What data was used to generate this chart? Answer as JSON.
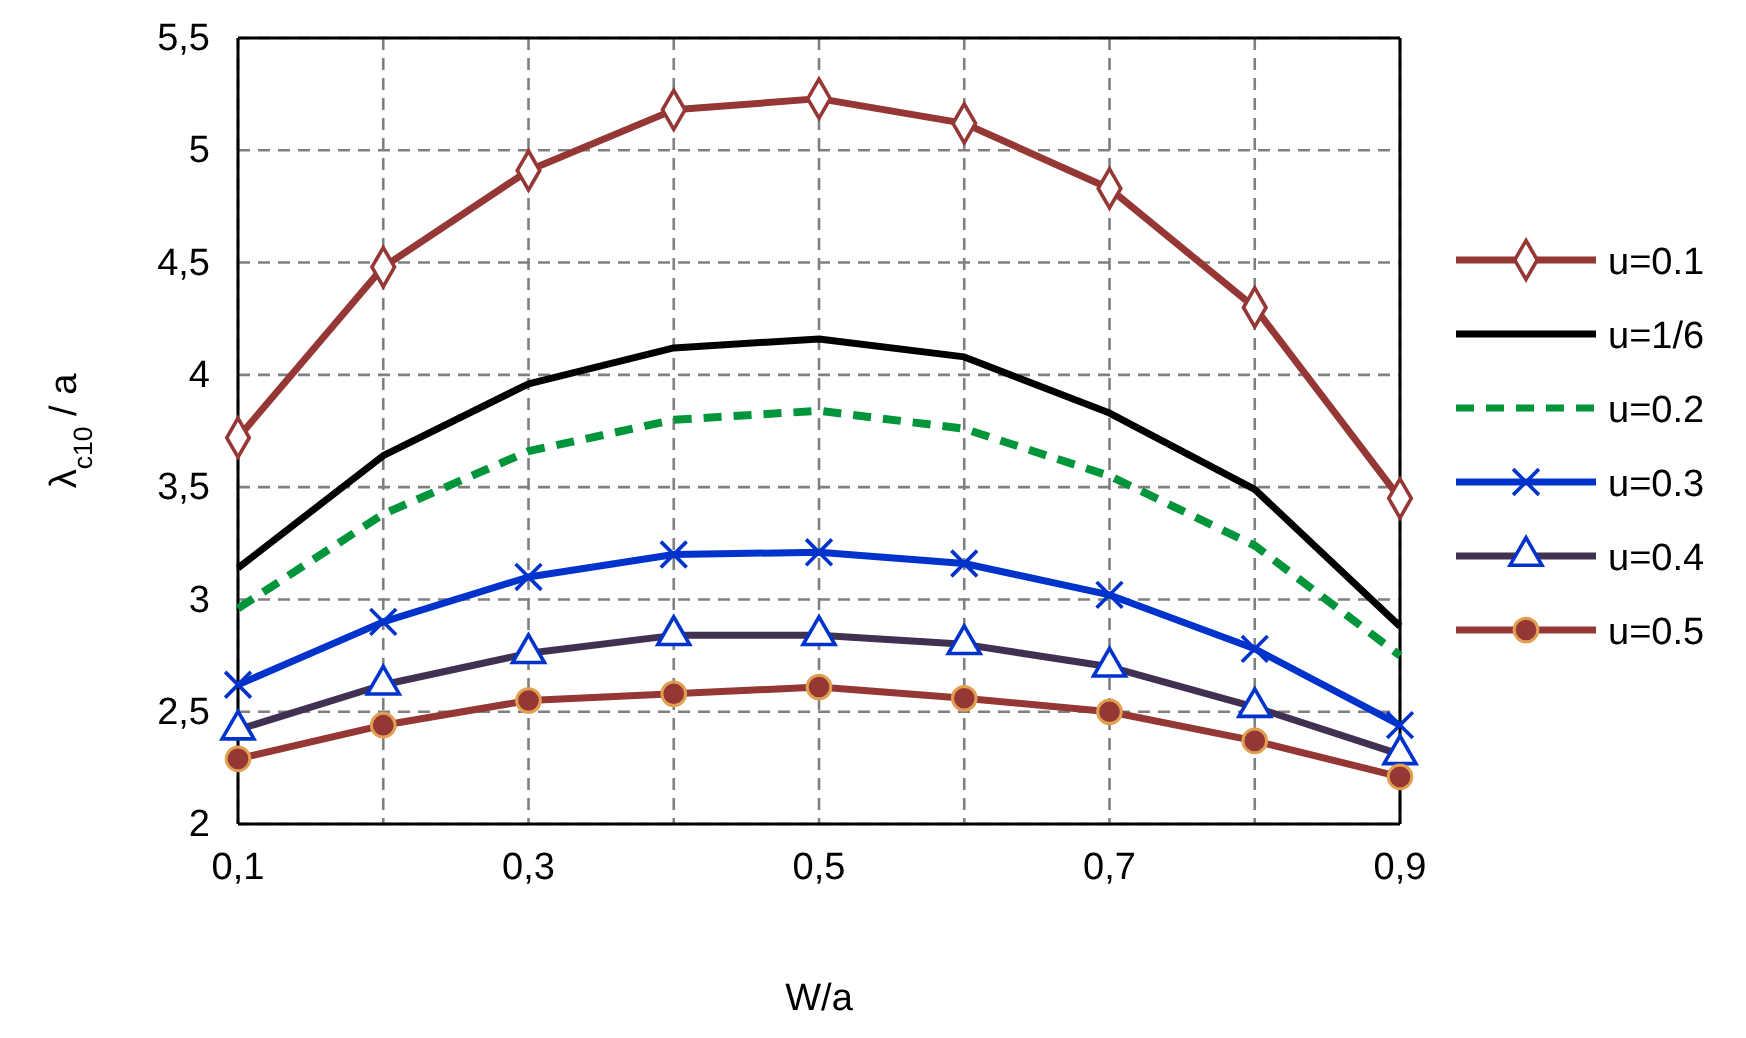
{
  "chart_data": {
    "type": "line",
    "xlabel": "W/a",
    "ylabel": "λ$_{c10}$ / a",
    "x": [
      0.1,
      0.2,
      0.3,
      0.4,
      0.5,
      0.6,
      0.7,
      0.8,
      0.9
    ],
    "xlim": [
      0.1,
      0.9
    ],
    "xticks": [
      {
        "value": 0.1,
        "label": "0,1"
      },
      {
        "value": 0.2,
        "label": null
      },
      {
        "value": 0.3,
        "label": "0,3"
      },
      {
        "value": 0.4,
        "label": null
      },
      {
        "value": 0.5,
        "label": "0,5"
      },
      {
        "value": 0.6,
        "label": null
      },
      {
        "value": 0.7,
        "label": "0,7"
      },
      {
        "value": 0.8,
        "label": null
      },
      {
        "value": 0.9,
        "label": "0,9"
      }
    ],
    "ylim": [
      2,
      5.5
    ],
    "yticks": [
      2,
      {
        "value": 2.5,
        "label": "2,5"
      },
      3,
      {
        "value": 3.5,
        "label": "3,5"
      },
      4,
      {
        "value": 4.5,
        "label": "4,5"
      },
      5,
      {
        "value": 5.5,
        "label": "5,5"
      }
    ],
    "grid": true,
    "legend": "right",
    "series": [
      {
        "name": "u=0.1",
        "color": "#953735",
        "marker": "diamond",
        "values": [
          3.72,
          4.48,
          4.91,
          5.18,
          5.23,
          5.12,
          4.83,
          4.3,
          3.45
        ]
      },
      {
        "name": "u=1/6",
        "color": "#000000",
        "marker": "none",
        "values": [
          3.14,
          3.64,
          3.96,
          4.12,
          4.16,
          4.08,
          3.83,
          3.49,
          2.88
        ]
      },
      {
        "name": "u=0.2",
        "color": "#00953a",
        "marker": "none",
        "line_style": "dashed",
        "values": [
          2.96,
          3.38,
          3.66,
          3.8,
          3.84,
          3.76,
          3.55,
          3.24,
          2.75
        ]
      },
      {
        "name": "u=0.3",
        "color": "#0033cc",
        "marker": "cross",
        "values": [
          2.62,
          2.9,
          3.1,
          3.2,
          3.21,
          3.16,
          3.02,
          2.78,
          2.44
        ]
      },
      {
        "name": "u=0.4",
        "color": "#403152",
        "marker": "triangle",
        "values": [
          2.42,
          2.62,
          2.76,
          2.84,
          2.84,
          2.8,
          2.7,
          2.52,
          2.31
        ]
      },
      {
        "name": "u=0.5",
        "color": "#953735",
        "marker": "circle",
        "values": [
          2.29,
          2.44,
          2.55,
          2.58,
          2.61,
          2.56,
          2.5,
          2.37,
          2.21
        ]
      }
    ]
  }
}
